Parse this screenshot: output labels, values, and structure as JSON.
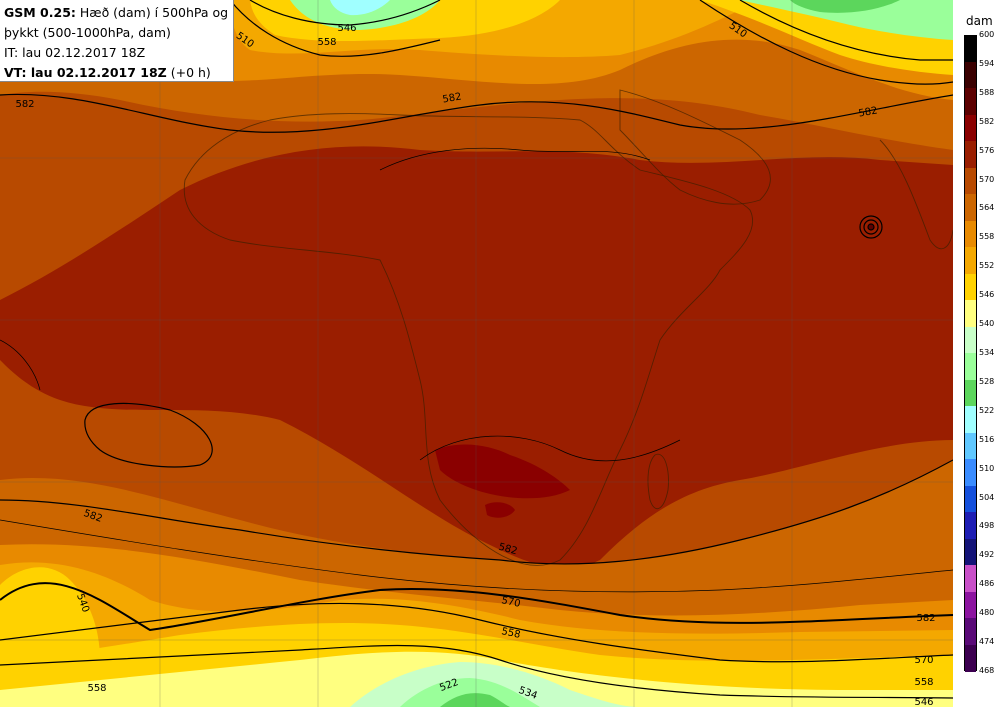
{
  "header": {
    "model": "GSM 0.25:",
    "title_line1": "Hæð (dam) í 500hPa og",
    "title_line2": "þykkt (500-1000hPa, dam)",
    "init_time": "IT: lau 02.12.2017 18Z",
    "valid_prefix": "VT: lau 02.12.2017 18Z",
    "valid_suffix": "(+0 h)"
  },
  "legend": {
    "unit": "dam",
    "ticks": [
      "600",
      "594",
      "588",
      "582",
      "576",
      "570",
      "564",
      "558",
      "552",
      "546",
      "540",
      "534",
      "528",
      "522",
      "516",
      "510",
      "504",
      "498",
      "492",
      "486",
      "480",
      "474",
      "468"
    ],
    "colors": [
      "#000000",
      "#3a0000",
      "#5c0000",
      "#8a0000",
      "#9a1e00",
      "#b84a00",
      "#cc6600",
      "#e88a00",
      "#f4a800",
      "#ffd200",
      "#ffff80",
      "#c8ffc8",
      "#9aff9a",
      "#5cd65c",
      "#a0ffff",
      "#60c8ff",
      "#3a8cff",
      "#1450dc",
      "#1e1eb4",
      "#141478",
      "#c850c8",
      "#8c14a0",
      "#5a0a78",
      "#3c0050"
    ]
  },
  "contour_labels": [
    {
      "text": "546",
      "group": "north"
    },
    {
      "text": "558",
      "group": "north"
    },
    {
      "text": "510",
      "group": "north"
    },
    {
      "text": "510",
      "group": "north-east"
    },
    {
      "text": "582",
      "group": "west"
    },
    {
      "text": "582",
      "group": "center"
    },
    {
      "text": "582",
      "group": "east"
    },
    {
      "text": "582",
      "group": "south-west"
    },
    {
      "text": "582",
      "group": "south"
    },
    {
      "text": "540",
      "group": "south-west"
    },
    {
      "text": "570",
      "group": "south"
    },
    {
      "text": "558",
      "group": "south"
    },
    {
      "text": "522",
      "group": "south"
    },
    {
      "text": "534",
      "group": "south"
    },
    {
      "text": "582",
      "group": "south-east"
    },
    {
      "text": "570",
      "group": "south-east"
    },
    {
      "text": "558",
      "group": "south-east"
    },
    {
      "text": "546",
      "group": "south-east"
    },
    {
      "text": "558",
      "group": "south-west"
    }
  ]
}
